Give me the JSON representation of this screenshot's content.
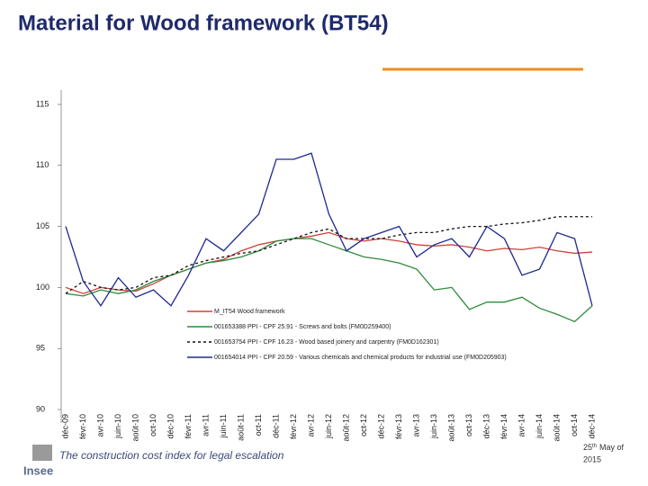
{
  "header": {
    "title": "Material for Wood framework (BT54)"
  },
  "chart_data": {
    "type": "line",
    "categories": [
      "déc-09",
      "févr-10",
      "avr-10",
      "juin-10",
      "août-10",
      "oct-10",
      "déc-10",
      "févr-11",
      "avr-11",
      "juin-11",
      "août-11",
      "oct-11",
      "déc-11",
      "févr-12",
      "avr-12",
      "juin-12",
      "août-12",
      "oct-12",
      "déc-12",
      "févr-13",
      "avr-13",
      "juin-13",
      "août-13",
      "oct-13",
      "déc-13",
      "févr-14",
      "avr-14",
      "juin-14",
      "août-14",
      "oct-14",
      "déc-14"
    ],
    "ylim": [
      90,
      115
    ],
    "yticks": [
      90,
      95,
      100,
      105,
      110,
      115
    ],
    "series": [
      {
        "name": "M_IT54 Wood framework",
        "color": "#d0403a",
        "dash": false,
        "values": [
          100,
          99.5,
          100,
          99.8,
          99.7,
          100.3,
          101,
          101.5,
          102,
          102.3,
          103,
          103.5,
          103.8,
          104,
          104.2,
          104.5,
          104,
          103.8,
          104,
          103.8,
          103.5,
          103.4,
          103.5,
          103.3,
          103,
          103.2,
          103.1,
          103.3,
          103,
          102.8,
          102.9
        ]
      },
      {
        "name": "001653388 PPI - CPF 25.91 - Screws and bolts (FM0D259400)",
        "color": "#2e8b3a",
        "dash": false,
        "values": [
          99.5,
          99.3,
          99.8,
          99.5,
          99.8,
          100.5,
          101,
          101.5,
          102,
          102.2,
          102.5,
          103,
          103.8,
          104,
          104,
          103.5,
          103,
          102.5,
          102.3,
          102,
          101.5,
          99.8,
          100,
          98.2,
          98.8,
          98.8,
          99.2,
          98.3,
          97.8,
          97.2,
          98.5
        ]
      },
      {
        "name": "001653754 PPI - CPF 16.23 - Wood based joinery and carpentry (FM0D162301)",
        "color": "#111111",
        "dash": true,
        "values": [
          99.5,
          100.5,
          100,
          99.8,
          100,
          100.8,
          101,
          101.8,
          102.2,
          102.5,
          102.8,
          103,
          103.5,
          104,
          104.5,
          104.8,
          104,
          104,
          104,
          104.3,
          104.5,
          104.5,
          104.8,
          105,
          105,
          105.2,
          105.3,
          105.5,
          105.8,
          105.8,
          105.8
        ]
      },
      {
        "name": "001654014 PPI - CPF 20.59 - Various chemicals and chemical products for industrial use (FM0D205903)",
        "color": "#1c2a8c",
        "dash": false,
        "values": [
          105,
          100.5,
          98.5,
          100.8,
          99.2,
          99.8,
          98.5,
          101,
          104,
          103,
          104.5,
          106,
          110.5,
          110.5,
          111,
          106,
          103,
          104,
          104.5,
          105,
          102.5,
          103.5,
          104,
          102.5,
          105,
          104,
          101,
          101.5,
          104.5,
          104,
          98.5
        ]
      }
    ]
  },
  "footer": {
    "caption": "The construction cost index for legal escalation",
    "date_day": "25",
    "date_suffix": "th",
    "date_line1": "May of",
    "date_line2": "2015",
    "logo": "Insee"
  }
}
